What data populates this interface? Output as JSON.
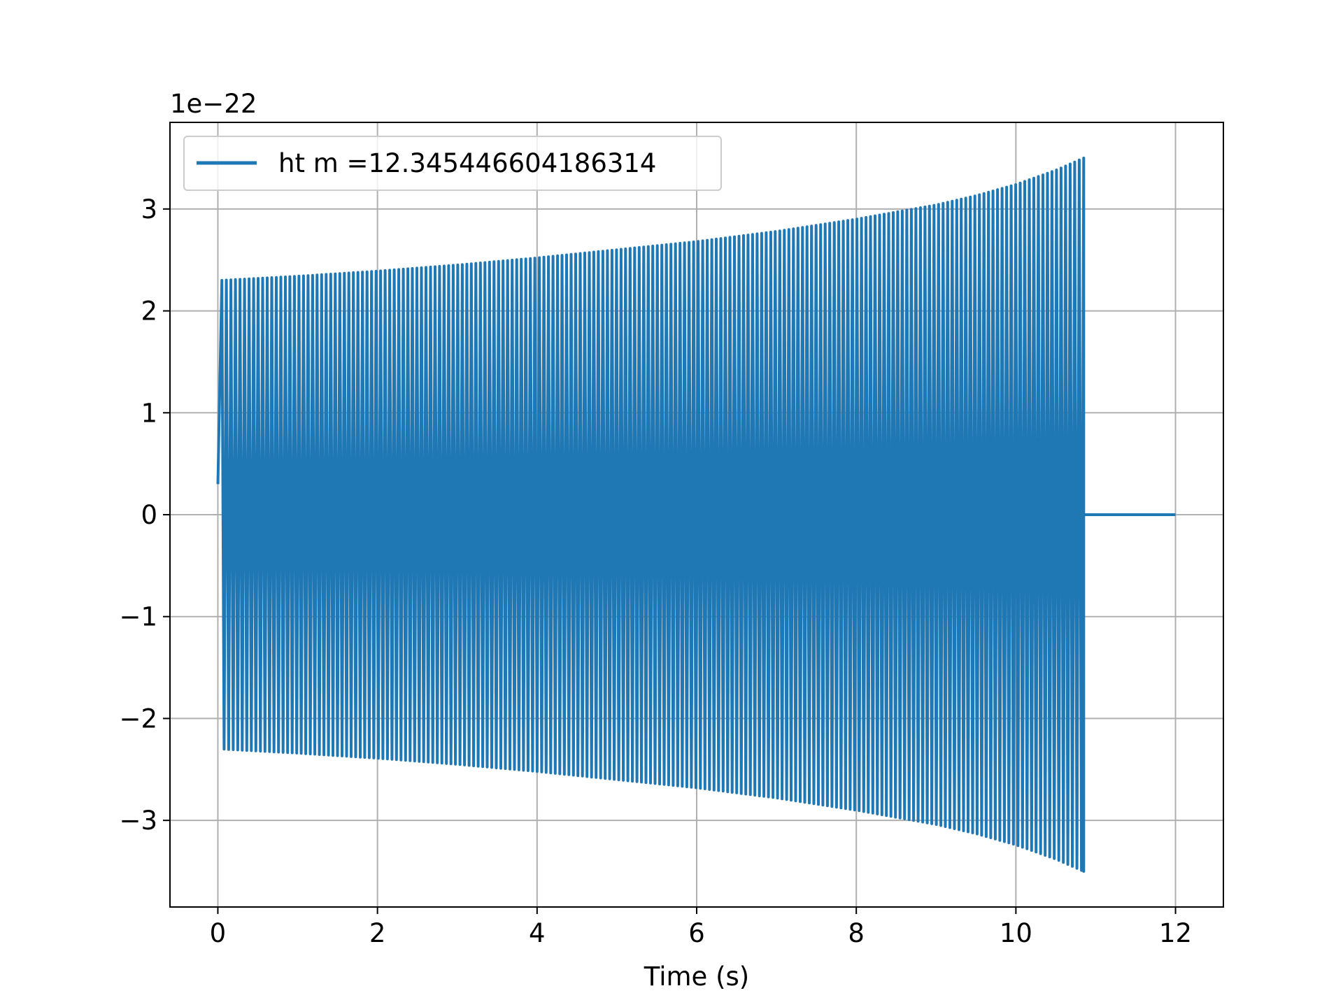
{
  "chart_data": {
    "type": "line",
    "xlabel": "Time (s)",
    "ylabel": "",
    "y_offset_label": "1e−22",
    "xlim": [
      -0.6,
      12.6
    ],
    "ylim": [
      -3.85,
      3.85
    ],
    "x_ticks": [
      0,
      2,
      4,
      6,
      8,
      10,
      12
    ],
    "x_tick_labels": [
      "0",
      "2",
      "4",
      "6",
      "8",
      "10",
      "12"
    ],
    "y_ticks": [
      -3,
      -2,
      -1,
      0,
      1,
      2,
      3
    ],
    "y_tick_labels": [
      "−3",
      "−2",
      "−1",
      "0",
      "1",
      "2",
      "3"
    ],
    "grid": true,
    "legend_position": "upper-left",
    "series": [
      {
        "name": "ht m =12.345446604186314",
        "color": "#1f77b4",
        "description_points": {
          "t": [
            0.0,
            0.05,
            1,
            2,
            3,
            4,
            5,
            6,
            7,
            8,
            9,
            9.5,
            10,
            10.5,
            10.85,
            10.86,
            12.0
          ],
          "envelope_upper": [
            0.3,
            2.3,
            2.34,
            2.39,
            2.45,
            2.52,
            2.6,
            2.68,
            2.78,
            2.9,
            3.04,
            3.13,
            3.24,
            3.38,
            3.5,
            0.0,
            0.0
          ],
          "envelope_lower": [
            -0.3,
            -2.3,
            -2.34,
            -2.39,
            -2.45,
            -2.52,
            -2.6,
            -2.68,
            -2.78,
            -2.9,
            -3.04,
            -3.13,
            -3.24,
            -3.38,
            -3.5,
            0.0,
            0.0
          ]
        }
      }
    ]
  }
}
